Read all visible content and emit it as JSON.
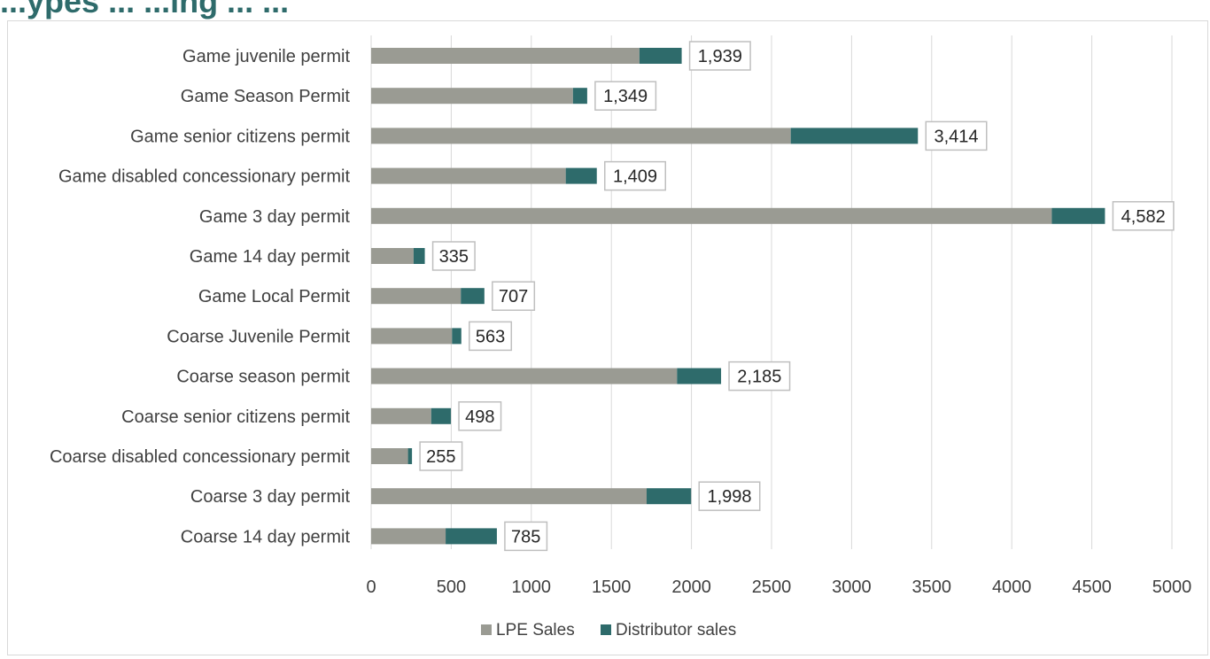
{
  "page": {
    "title": "...ypes ... ...ing ... ..."
  },
  "colors": {
    "lpe": "#9a9b93",
    "distributor": "#2e6b6b",
    "grid": "#d9d9d9",
    "label_border": "#bfbfbf",
    "text": "#404040"
  },
  "chart_data": {
    "type": "bar",
    "orientation": "horizontal",
    "stacked": true,
    "categories": [
      "Game juvenile permit",
      "Game Season Permit",
      "Game senior citizens permit",
      "Game disabled concessionary permit",
      "Game 3 day permit",
      "Game 14 day permit",
      "Game Local Permit",
      "Coarse Juvenile Permit",
      "Coarse season permit",
      "Coarse senior citizens permit",
      "Coarse disabled concessionary permit",
      "Coarse 3 day permit",
      "Coarse 14 day permit"
    ],
    "series": [
      {
        "name": "LPE Sales",
        "values": [
          1675,
          1260,
          2620,
          1215,
          4250,
          265,
          560,
          505,
          1910,
          375,
          230,
          1720,
          465
        ]
      },
      {
        "name": "Distributor sales",
        "values": [
          264,
          89,
          794,
          194,
          332,
          70,
          147,
          58,
          275,
          123,
          25,
          278,
          320
        ]
      }
    ],
    "totals": [
      "1,939",
      "1,349",
      "3,414",
      "1,409",
      "4,582",
      "335",
      "707",
      "563",
      "2,185",
      "498",
      "255",
      "1,998",
      "785"
    ],
    "xlim": [
      0,
      5000
    ],
    "xticks": [
      0,
      500,
      1000,
      1500,
      2000,
      2500,
      3000,
      3500,
      4000,
      4500,
      5000
    ],
    "grid": "vertical",
    "legend": "bottom",
    "title": "",
    "xlabel": "",
    "ylabel": ""
  }
}
